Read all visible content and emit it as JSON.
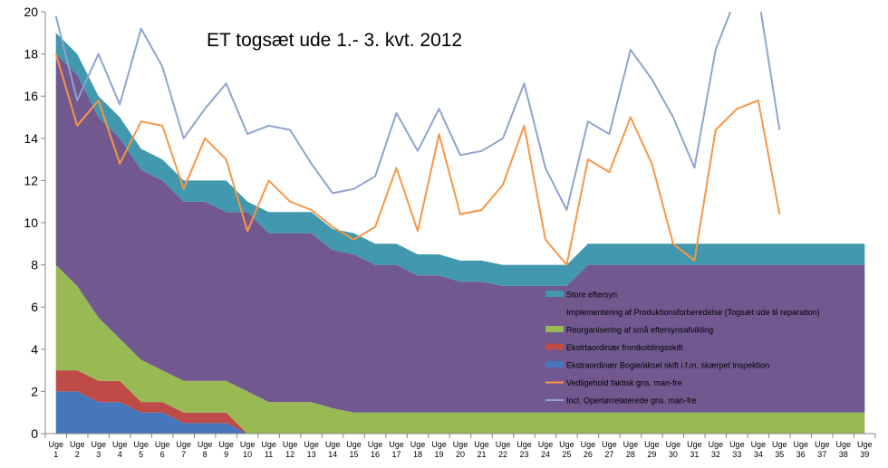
{
  "chart_data": {
    "type": "area",
    "title": "ET togsæt ude 1.- 3. kvt. 2012",
    "categories": [
      "Uge 1",
      "Uge 2",
      "Uge 3",
      "Uge 4",
      "Uge 5",
      "Uge 6",
      "Uge 7",
      "Uge 8",
      "Uge 9",
      "Uge 10",
      "Uge 11",
      "Uge 12",
      "Uge 13",
      "Uge 14",
      "Uge 15",
      "Uge 16",
      "Uge 17",
      "Uge 18",
      "Uge 19",
      "Uge 20",
      "Uge 21",
      "Uge 22",
      "Uge 23",
      "Uge 24",
      "Uge 25",
      "Uge 26",
      "Uge 27",
      "Uge 28",
      "Uge 29",
      "Uge 30",
      "Uge 31",
      "Uge 32",
      "Uge 33",
      "Uge 34",
      "Uge 35",
      "Uge 36",
      "Uge 37",
      "Uge 38",
      "Uge 39"
    ],
    "ylim": [
      0,
      20
    ],
    "yticks": [
      0,
      2,
      4,
      6,
      8,
      10,
      12,
      14,
      16,
      18,
      20
    ],
    "grid": false,
    "legend_position": "bottom-right",
    "stacked_series": [
      {
        "name": "Ekstraordinær Bogie/aksel skift i.f.m. skærpet inspektion",
        "color": "#4677BD",
        "values": [
          2,
          2,
          1.5,
          1.5,
          1,
          1,
          0.5,
          0.5,
          0.5,
          0,
          0,
          0,
          0,
          0,
          0,
          0,
          0,
          0,
          0,
          0,
          0,
          0,
          0,
          0,
          0,
          0,
          0,
          0,
          0,
          0,
          0,
          0,
          0,
          0,
          0,
          0,
          0,
          0,
          0
        ]
      },
      {
        "name": "Ekstrtaordinær frontkoblingsskift",
        "color": "#BE4B48",
        "values": [
          1,
          1,
          1,
          1,
          0.5,
          0.5,
          0.5,
          0.5,
          0.5,
          0,
          0,
          0,
          0,
          0,
          0,
          0,
          0,
          0,
          0,
          0,
          0,
          0,
          0,
          0,
          0,
          0,
          0,
          0,
          0,
          0,
          0,
          0,
          0,
          0,
          0,
          0,
          0,
          0,
          0
        ]
      },
      {
        "name": "Reorganisering af små eftersynsafvikling",
        "color": "#98B954",
        "values": [
          5,
          4,
          3,
          2,
          2,
          1.5,
          1.5,
          1.5,
          1.5,
          2,
          1.5,
          1.5,
          1.5,
          1.2,
          1,
          1,
          1,
          1,
          1,
          1,
          1,
          1,
          1,
          1,
          1,
          1,
          1,
          1,
          1,
          1,
          1,
          1,
          1,
          1,
          1,
          1,
          1,
          1,
          1
        ]
      },
      {
        "name": "Implementering af Produktionsforberedelse (Togsæt ude til reparation)",
        "color": "#71588F",
        "values": [
          10,
          10,
          9.5,
          9.5,
          9,
          9,
          8.5,
          8.5,
          8,
          8.5,
          8,
          8,
          8,
          7.5,
          7.5,
          7,
          7,
          6.5,
          6.5,
          6.2,
          6.2,
          6,
          6,
          6,
          6,
          7,
          7,
          7,
          7,
          7,
          7,
          7,
          7,
          7,
          7,
          7,
          7,
          7,
          7
        ]
      },
      {
        "name": "Store eftersyn",
        "color": "#4198AF",
        "values": [
          1,
          1,
          1,
          1,
          1,
          1,
          1,
          1,
          1.5,
          0.5,
          1,
          1,
          1,
          1,
          1,
          1,
          1,
          1,
          1,
          1,
          1,
          1,
          1,
          1,
          1,
          1,
          1,
          1,
          1,
          1,
          1,
          1,
          1,
          1,
          1,
          1,
          1,
          1,
          1
        ]
      }
    ],
    "line_series": [
      {
        "name": "Vedligehold faktisk gns. man-fre",
        "color": "#F79646",
        "values": [
          18,
          14.6,
          15.8,
          12.8,
          14.8,
          14.6,
          11.6,
          14,
          13,
          9.6,
          12,
          11,
          10.6,
          9.8,
          9.2,
          9.8,
          12.6,
          9.6,
          14.2,
          10.4,
          10.6,
          11.8,
          14.6,
          9.2,
          8,
          13,
          12.4,
          15,
          12.8,
          9,
          8.2,
          14.4,
          15.4,
          15.8,
          10.4
        ]
      },
      {
        "name": "Incl. Opertørrelaterede gns. man-fre",
        "color": "#8EA4CE",
        "values": [
          19.8,
          15.8,
          18,
          15.6,
          19.2,
          17.4,
          14,
          15.4,
          16.6,
          14.2,
          14.6,
          14.4,
          12.8,
          11.4,
          11.6,
          12.2,
          15.2,
          13.4,
          15.4,
          13.2,
          13.4,
          14,
          16.6,
          12.6,
          10.6,
          14.8,
          14.2,
          18.2,
          16.8,
          15,
          12.6,
          18.2,
          20.8,
          20.8,
          14.4
        ]
      }
    ],
    "legend_order": [
      "Store eftersyn",
      "Implementering af Produktionsforberedelse (Togsæt ude til reparation)",
      "Reorganisering af små eftersynsafvikling",
      "Ekstrtaordinær frontkoblingsskift",
      "Ekstraordinær Bogie/aksel skift i.f.m. skærpet inspektion",
      "Vedligehold faktisk gns. man-fre",
      "Incl. Opertørrelaterede gns. man-fre"
    ]
  }
}
